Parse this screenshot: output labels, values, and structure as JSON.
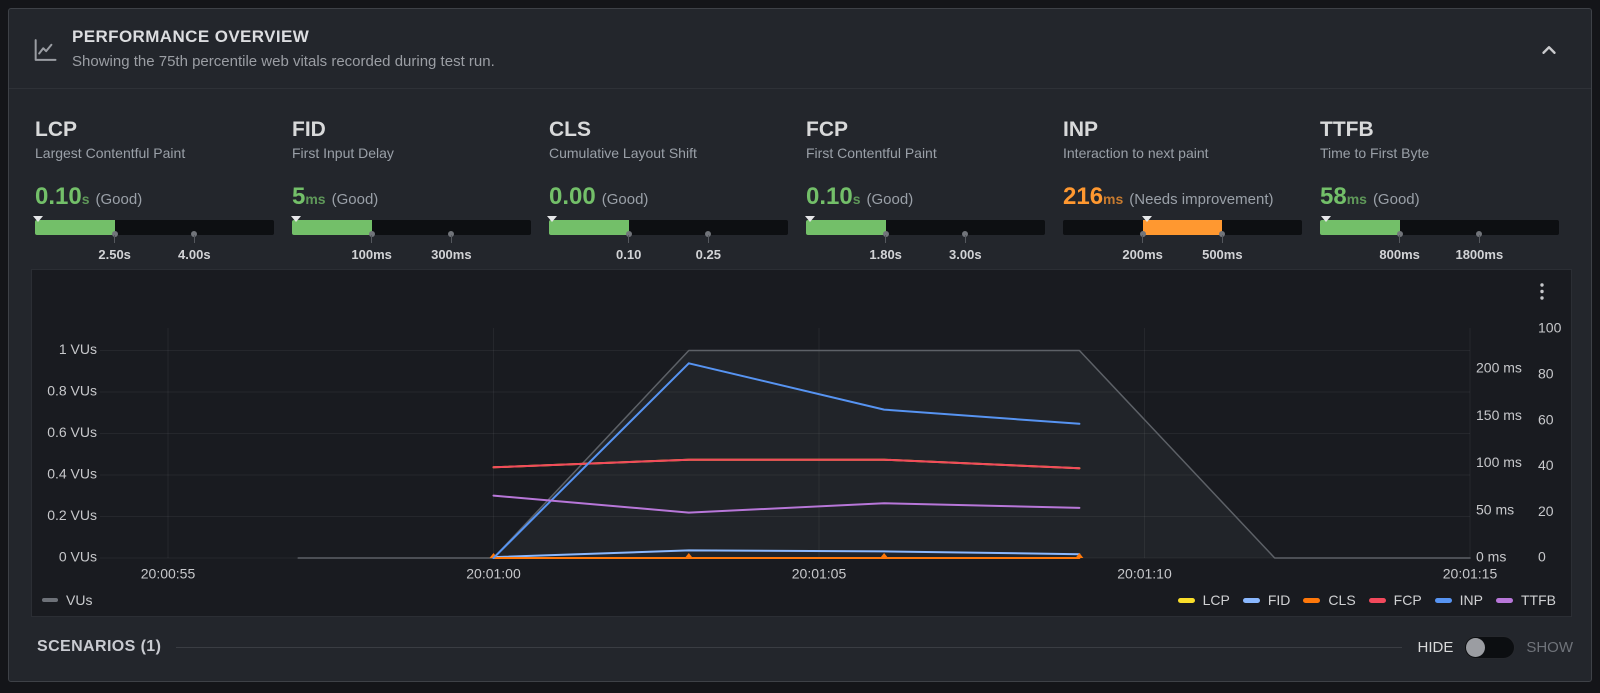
{
  "header": {
    "title": "PERFORMANCE OVERVIEW",
    "subtitle": "Showing the 75th percentile web vitals recorded during test run."
  },
  "metrics": [
    {
      "id": "lcp",
      "title": "LCP",
      "subtitle": "Largest Contentful Paint",
      "value": "0.10",
      "unit": "s",
      "status": "(Good)",
      "status_color": "#73BF69",
      "value_num": 0.1,
      "thresholds": [
        2.5,
        4.0
      ],
      "threshold_labels": [
        "2.50s",
        "4.00s"
      ]
    },
    {
      "id": "fid",
      "title": "FID",
      "subtitle": "First Input Delay",
      "value": "5",
      "unit": "ms",
      "status": "(Good)",
      "status_color": "#73BF69",
      "value_num": 5,
      "thresholds": [
        100,
        300
      ],
      "threshold_labels": [
        "100ms",
        "300ms"
      ]
    },
    {
      "id": "cls",
      "title": "CLS",
      "subtitle": "Cumulative Layout Shift",
      "value": "0.00",
      "unit": "",
      "status": "(Good)",
      "status_color": "#73BF69",
      "value_num": 0,
      "thresholds": [
        0.1,
        0.25
      ],
      "threshold_labels": [
        "0.10",
        "0.25"
      ]
    },
    {
      "id": "fcp",
      "title": "FCP",
      "subtitle": "First Contentful Paint",
      "value": "0.10",
      "unit": "s",
      "status": "(Good)",
      "status_color": "#73BF69",
      "value_num": 0.1,
      "thresholds": [
        1.8,
        3.0
      ],
      "threshold_labels": [
        "1.80s",
        "3.00s"
      ]
    },
    {
      "id": "inp",
      "title": "INP",
      "subtitle": "Interaction to next paint",
      "value": "216",
      "unit": "ms",
      "status": "(Needs improvement)",
      "status_color": "#FF9830",
      "value_num": 216,
      "thresholds": [
        200,
        500
      ],
      "threshold_labels": [
        "200ms",
        "500ms"
      ]
    },
    {
      "id": "ttfb",
      "title": "TTFB",
      "subtitle": "Time to First Byte",
      "value": "58",
      "unit": "ms",
      "status": "(Good)",
      "status_color": "#73BF69",
      "value_num": 58,
      "thresholds": [
        800,
        1800
      ],
      "threshold_labels": [
        "800ms",
        "1800ms"
      ]
    }
  ],
  "chart_data": {
    "type": "line",
    "x_axis": {
      "tick_labels": [
        "20:00:55",
        "20:01:00",
        "20:01:05",
        "20:01:10",
        "20:01:15"
      ],
      "tick_seconds": [
        0,
        5,
        10,
        15,
        20
      ]
    },
    "y_axis_vus": {
      "tick_labels": [
        "1 VUs",
        "0.8 VUs",
        "0.6 VUs",
        "0.4 VUs",
        "0.2 VUs",
        "0 VUs"
      ],
      "tick_values": [
        1,
        0.8,
        0.6,
        0.4,
        0.2,
        0
      ],
      "range": [
        0,
        1
      ]
    },
    "y_axis_ms": {
      "tick_labels": [
        "200 ms",
        "150 ms",
        "100 ms",
        "50 ms",
        "0 ms"
      ],
      "tick_values": [
        200,
        150,
        100,
        50,
        0
      ],
      "range": [
        0,
        305
      ]
    },
    "y_axis_score": {
      "tick_labels": [
        "100",
        "80",
        "60",
        "40",
        "20",
        "0"
      ],
      "tick_values": [
        100,
        80,
        60,
        40,
        20,
        0
      ],
      "range": [
        0,
        126
      ]
    },
    "series": [
      {
        "name": "VUs",
        "axis": "vu",
        "color": "#5d6167",
        "width": 1.5,
        "fill": "rgba(205,210,220,0.05)",
        "points": [
          [
            2,
            0
          ],
          [
            5,
            0
          ],
          [
            8,
            1
          ],
          [
            14,
            1
          ],
          [
            17,
            0
          ],
          [
            20,
            0
          ]
        ]
      },
      {
        "name": "LCP",
        "axis": "ms",
        "color": "#FADE2A",
        "width": 2,
        "points": [
          [
            5,
            96
          ],
          [
            8,
            104
          ],
          [
            11,
            104
          ],
          [
            14,
            95
          ]
        ]
      },
      {
        "name": "FID",
        "axis": "ms",
        "color": "#8AB8FF",
        "width": 2,
        "points": [
          [
            5,
            1
          ],
          [
            8,
            8
          ],
          [
            11,
            7
          ],
          [
            14,
            4
          ]
        ]
      },
      {
        "name": "CLS",
        "axis": "ms",
        "color": "#FF780A",
        "width": 2,
        "markers": true,
        "points": [
          [
            5,
            0
          ],
          [
            8,
            0
          ],
          [
            11,
            0
          ],
          [
            14,
            0
          ]
        ]
      },
      {
        "name": "FCP",
        "axis": "ms",
        "color": "#F2495C",
        "width": 2,
        "points": [
          [
            5,
            96
          ],
          [
            8,
            104
          ],
          [
            11,
            104
          ],
          [
            14,
            95
          ]
        ]
      },
      {
        "name": "INP",
        "axis": "ms",
        "color": "#5794F2",
        "width": 2,
        "points": [
          [
            5,
            0
          ],
          [
            8,
            206
          ],
          [
            11,
            157
          ],
          [
            14,
            142
          ]
        ]
      },
      {
        "name": "TTFB",
        "axis": "ms",
        "color": "#B877D9",
        "width": 2,
        "points": [
          [
            5,
            66
          ],
          [
            8,
            48
          ],
          [
            11,
            58
          ],
          [
            14,
            53
          ]
        ]
      }
    ],
    "legend_left": [
      "VUs"
    ],
    "legend_right": [
      "LCP",
      "FID",
      "CLS",
      "FCP",
      "INP",
      "TTFB"
    ],
    "grid": true
  },
  "footer": {
    "scenarios_label": "SCENARIOS (1)",
    "hide_label": "HIDE",
    "show_label": "SHOW",
    "toggle_state": "hide"
  }
}
